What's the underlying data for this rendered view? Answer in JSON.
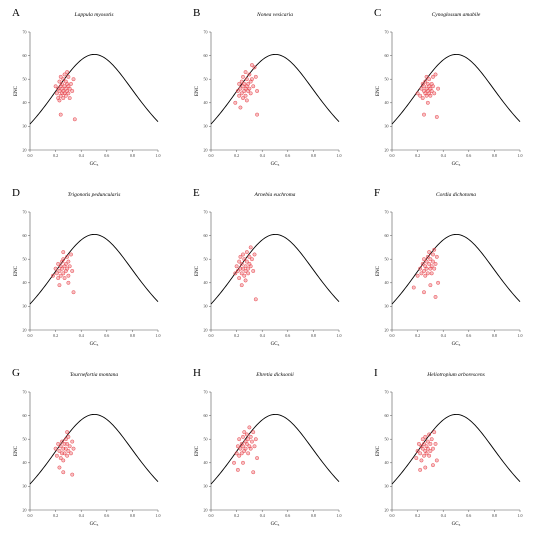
{
  "figure": {
    "point_color": "#e8484f",
    "curve_color": "#000000",
    "axis_color": "#555555"
  },
  "chart_data": [
    {
      "type": "scatter",
      "panel_letter": "A",
      "title": "Lappula myosotis",
      "xlabel": "GC₃",
      "ylabel": "ENC",
      "xlim": [
        0,
        1
      ],
      "ylim": [
        20,
        70
      ],
      "xticks": [
        "0.0",
        "0.2",
        "0.4",
        "0.6",
        "0.8",
        "1.0"
      ],
      "yticks": [
        "20",
        "30",
        "40",
        "50",
        "60",
        "70"
      ],
      "expected_curve": "ENC = 2 + GC3 + 29 / (GC3^2 + (1 - GC3)^2)",
      "points": [
        [
          0.2,
          47
        ],
        [
          0.21,
          44
        ],
        [
          0.22,
          42
        ],
        [
          0.22,
          46
        ],
        [
          0.23,
          45
        ],
        [
          0.23,
          49
        ],
        [
          0.24,
          43
        ],
        [
          0.24,
          47
        ],
        [
          0.24,
          51
        ],
        [
          0.25,
          44
        ],
        [
          0.25,
          46
        ],
        [
          0.25,
          48
        ],
        [
          0.26,
          42
        ],
        [
          0.26,
          45
        ],
        [
          0.26,
          50
        ],
        [
          0.27,
          47
        ],
        [
          0.27,
          44
        ],
        [
          0.27,
          52
        ],
        [
          0.28,
          46
        ],
        [
          0.28,
          43
        ],
        [
          0.28,
          49
        ],
        [
          0.29,
          45
        ],
        [
          0.29,
          48
        ],
        [
          0.3,
          44
        ],
        [
          0.3,
          47
        ],
        [
          0.3,
          51
        ],
        [
          0.31,
          46
        ],
        [
          0.31,
          42
        ],
        [
          0.32,
          48
        ],
        [
          0.33,
          45
        ],
        [
          0.34,
          50
        ],
        [
          0.24,
          35
        ],
        [
          0.35,
          33
        ],
        [
          0.23,
          41
        ],
        [
          0.29,
          53
        ]
      ]
    },
    {
      "type": "scatter",
      "panel_letter": "B",
      "title": "Nonea vesicaria",
      "xlabel": "GC₃",
      "ylabel": "ENC",
      "xlim": [
        0,
        1
      ],
      "ylim": [
        20,
        70
      ],
      "xticks": [
        "0.0",
        "0.2",
        "0.4",
        "0.6",
        "0.8",
        "1.0"
      ],
      "yticks": [
        "20",
        "30",
        "40",
        "50",
        "60",
        "70"
      ],
      "expected_curve": "ENC = 2 + GC3 + 29 / (GC3^2 + (1 - GC3)^2)",
      "points": [
        [
          0.19,
          40
        ],
        [
          0.21,
          45
        ],
        [
          0.22,
          43
        ],
        [
          0.22,
          48
        ],
        [
          0.23,
          46
        ],
        [
          0.24,
          44
        ],
        [
          0.24,
          49
        ],
        [
          0.25,
          47
        ],
        [
          0.25,
          42
        ],
        [
          0.25,
          51
        ],
        [
          0.26,
          45
        ],
        [
          0.26,
          48
        ],
        [
          0.27,
          46
        ],
        [
          0.27,
          43
        ],
        [
          0.27,
          53
        ],
        [
          0.28,
          47
        ],
        [
          0.28,
          50
        ],
        [
          0.29,
          45
        ],
        [
          0.29,
          48
        ],
        [
          0.3,
          52
        ],
        [
          0.3,
          46
        ],
        [
          0.31,
          49
        ],
        [
          0.31,
          44
        ],
        [
          0.32,
          50
        ],
        [
          0.33,
          47
        ],
        [
          0.34,
          55
        ],
        [
          0.35,
          51
        ],
        [
          0.36,
          45
        ],
        [
          0.23,
          38
        ],
        [
          0.36,
          35
        ],
        [
          0.28,
          41
        ],
        [
          0.32,
          56
        ]
      ]
    },
    {
      "type": "scatter",
      "panel_letter": "C",
      "title": "Cynoglossum amabile",
      "xlabel": "GC₃",
      "ylabel": "ENC",
      "xlim": [
        0,
        1
      ],
      "ylim": [
        20,
        70
      ],
      "xticks": [
        "0.0",
        "0.2",
        "0.4",
        "0.6",
        "0.8",
        "1.0"
      ],
      "yticks": [
        "20",
        "30",
        "40",
        "50",
        "60",
        "70"
      ],
      "expected_curve": "ENC = 2 + GC3 + 29 / (GC3^2 + (1 - GC3)^2)",
      "points": [
        [
          0.2,
          44
        ],
        [
          0.22,
          43
        ],
        [
          0.23,
          46
        ],
        [
          0.24,
          42
        ],
        [
          0.24,
          48
        ],
        [
          0.25,
          45
        ],
        [
          0.25,
          47
        ],
        [
          0.26,
          44
        ],
        [
          0.26,
          49
        ],
        [
          0.27,
          46
        ],
        [
          0.27,
          43
        ],
        [
          0.27,
          51
        ],
        [
          0.28,
          45
        ],
        [
          0.28,
          48
        ],
        [
          0.29,
          44
        ],
        [
          0.29,
          47
        ],
        [
          0.29,
          50
        ],
        [
          0.3,
          46
        ],
        [
          0.3,
          43
        ],
        [
          0.31,
          48
        ],
        [
          0.31,
          45
        ],
        [
          0.32,
          51
        ],
        [
          0.32,
          47
        ],
        [
          0.33,
          44
        ],
        [
          0.34,
          52
        ],
        [
          0.25,
          35
        ],
        [
          0.35,
          34
        ],
        [
          0.28,
          40
        ],
        [
          0.36,
          46
        ]
      ]
    },
    {
      "type": "scatter",
      "panel_letter": "D",
      "title": "Trigonotis peduncularis",
      "xlabel": "GC₃",
      "ylabel": "ENC",
      "xlim": [
        0,
        1
      ],
      "ylim": [
        20,
        70
      ],
      "xticks": [
        "0.0",
        "0.2",
        "0.4",
        "0.6",
        "0.8",
        "1.0"
      ],
      "yticks": [
        "20",
        "30",
        "40",
        "50",
        "60",
        "70"
      ],
      "expected_curve": "ENC = 2 + GC3 + 29 / (GC3^2 + (1 - GC3)^2)",
      "points": [
        [
          0.18,
          43
        ],
        [
          0.2,
          46
        ],
        [
          0.21,
          44
        ],
        [
          0.22,
          42
        ],
        [
          0.22,
          48
        ],
        [
          0.23,
          45
        ],
        [
          0.24,
          47
        ],
        [
          0.24,
          43
        ],
        [
          0.25,
          49
        ],
        [
          0.25,
          46
        ],
        [
          0.26,
          44
        ],
        [
          0.26,
          50
        ],
        [
          0.27,
          47
        ],
        [
          0.27,
          42
        ],
        [
          0.28,
          48
        ],
        [
          0.28,
          45
        ],
        [
          0.29,
          51
        ],
        [
          0.29,
          46
        ],
        [
          0.3,
          49
        ],
        [
          0.3,
          43
        ],
        [
          0.31,
          47
        ],
        [
          0.32,
          52
        ],
        [
          0.33,
          45
        ],
        [
          0.34,
          36
        ],
        [
          0.3,
          40
        ],
        [
          0.23,
          39
        ],
        [
          0.26,
          53
        ]
      ]
    },
    {
      "type": "scatter",
      "panel_letter": "E",
      "title": "Arnebia euchroma",
      "xlabel": "GC₃",
      "ylabel": "ENC",
      "xlim": [
        0,
        1
      ],
      "ylim": [
        20,
        70
      ],
      "xticks": [
        "0.0",
        "0.2",
        "0.4",
        "0.6",
        "0.8",
        "1.0"
      ],
      "yticks": [
        "20",
        "30",
        "40",
        "50",
        "60",
        "70"
      ],
      "expected_curve": "ENC = 2 + GC3 + 29 / (GC3^2 + (1 - GC3)^2)",
      "points": [
        [
          0.19,
          44
        ],
        [
          0.2,
          47
        ],
        [
          0.21,
          45
        ],
        [
          0.22,
          42
        ],
        [
          0.22,
          49
        ],
        [
          0.23,
          46
        ],
        [
          0.23,
          51
        ],
        [
          0.24,
          44
        ],
        [
          0.24,
          48
        ],
        [
          0.25,
          46
        ],
        [
          0.25,
          52
        ],
        [
          0.26,
          43
        ],
        [
          0.26,
          50
        ],
        [
          0.27,
          47
        ],
        [
          0.27,
          45
        ],
        [
          0.28,
          53
        ],
        [
          0.28,
          49
        ],
        [
          0.29,
          46
        ],
        [
          0.29,
          44
        ],
        [
          0.3,
          51
        ],
        [
          0.3,
          48
        ],
        [
          0.31,
          47
        ],
        [
          0.32,
          50
        ],
        [
          0.33,
          45
        ],
        [
          0.34,
          52
        ],
        [
          0.35,
          33
        ],
        [
          0.24,
          39
        ],
        [
          0.27,
          41
        ],
        [
          0.31,
          55
        ]
      ]
    },
    {
      "type": "scatter",
      "panel_letter": "F",
      "title": "Cordia dichotoma",
      "xlabel": "GC₃",
      "ylabel": "ENC",
      "xlim": [
        0,
        1
      ],
      "ylim": [
        20,
        70
      ],
      "xticks": [
        "0.0",
        "0.2",
        "0.4",
        "0.6",
        "0.8",
        "1.0"
      ],
      "yticks": [
        "20",
        "30",
        "40",
        "50",
        "60",
        "70"
      ],
      "expected_curve": "ENC = 2 + GC3 + 29 / (GC3^2 + (1 - GC3)^2)",
      "points": [
        [
          0.17,
          38
        ],
        [
          0.2,
          43
        ],
        [
          0.22,
          46
        ],
        [
          0.23,
          44
        ],
        [
          0.24,
          48
        ],
        [
          0.25,
          45
        ],
        [
          0.25,
          50
        ],
        [
          0.26,
          47
        ],
        [
          0.26,
          43
        ],
        [
          0.27,
          49
        ],
        [
          0.27,
          46
        ],
        [
          0.28,
          51
        ],
        [
          0.28,
          44
        ],
        [
          0.29,
          48
        ],
        [
          0.29,
          53
        ],
        [
          0.3,
          46
        ],
        [
          0.3,
          50
        ],
        [
          0.31,
          47
        ],
        [
          0.31,
          44
        ],
        [
          0.32,
          52
        ],
        [
          0.32,
          49
        ],
        [
          0.33,
          46
        ],
        [
          0.33,
          54
        ],
        [
          0.34,
          48
        ],
        [
          0.35,
          51
        ],
        [
          0.25,
          36
        ],
        [
          0.3,
          39
        ],
        [
          0.36,
          40
        ],
        [
          0.34,
          34
        ]
      ]
    },
    {
      "type": "scatter",
      "panel_letter": "G",
      "title": "Tournefortia montana",
      "xlabel": "GC₃",
      "ylabel": "ENC",
      "xlim": [
        0,
        1
      ],
      "ylim": [
        20,
        70
      ],
      "xticks": [
        "0.0",
        "0.2",
        "0.4",
        "0.6",
        "0.8",
        "1.0"
      ],
      "yticks": [
        "20",
        "30",
        "40",
        "50",
        "60",
        "70"
      ],
      "expected_curve": "ENC = 2 + GC3 + 29 / (GC3^2 + (1 - GC3)^2)",
      "points": [
        [
          0.2,
          46
        ],
        [
          0.21,
          43
        ],
        [
          0.22,
          48
        ],
        [
          0.23,
          45
        ],
        [
          0.24,
          42
        ],
        [
          0.24,
          47
        ],
        [
          0.25,
          44
        ],
        [
          0.25,
          49
        ],
        [
          0.26,
          46
        ],
        [
          0.26,
          41
        ],
        [
          0.27,
          48
        ],
        [
          0.27,
          44
        ],
        [
          0.28,
          50
        ],
        [
          0.28,
          46
        ],
        [
          0.29,
          43
        ],
        [
          0.29,
          48
        ],
        [
          0.3,
          45
        ],
        [
          0.3,
          51
        ],
        [
          0.31,
          47
        ],
        [
          0.32,
          44
        ],
        [
          0.33,
          49
        ],
        [
          0.34,
          46
        ],
        [
          0.23,
          38
        ],
        [
          0.26,
          36
        ],
        [
          0.33,
          35
        ],
        [
          0.29,
          53
        ]
      ]
    },
    {
      "type": "scatter",
      "panel_letter": "H",
      "title": "Ehretia dicksonii",
      "xlabel": "GC₃",
      "ylabel": "ENC",
      "xlim": [
        0,
        1
      ],
      "ylim": [
        20,
        70
      ],
      "xticks": [
        "0.0",
        "0.2",
        "0.4",
        "0.6",
        "0.8",
        "1.0"
      ],
      "yticks": [
        "20",
        "30",
        "40",
        "50",
        "60",
        "70"
      ],
      "expected_curve": "ENC = 2 + GC3 + 29 / (GC3^2 + (1 - GC3)^2)",
      "points": [
        [
          0.18,
          40
        ],
        [
          0.2,
          44
        ],
        [
          0.21,
          47
        ],
        [
          0.22,
          43
        ],
        [
          0.22,
          50
        ],
        [
          0.23,
          46
        ],
        [
          0.24,
          48
        ],
        [
          0.24,
          44
        ],
        [
          0.25,
          51
        ],
        [
          0.25,
          47
        ],
        [
          0.26,
          45
        ],
        [
          0.26,
          53
        ],
        [
          0.27,
          49
        ],
        [
          0.27,
          46
        ],
        [
          0.28,
          52
        ],
        [
          0.28,
          48
        ],
        [
          0.29,
          44
        ],
        [
          0.29,
          50
        ],
        [
          0.3,
          47
        ],
        [
          0.3,
          55
        ],
        [
          0.31,
          51
        ],
        [
          0.31,
          46
        ],
        [
          0.32,
          49
        ],
        [
          0.33,
          53
        ],
        [
          0.34,
          47
        ],
        [
          0.35,
          50
        ],
        [
          0.21,
          37
        ],
        [
          0.25,
          40
        ],
        [
          0.33,
          36
        ],
        [
          0.36,
          42
        ]
      ]
    },
    {
      "type": "scatter",
      "panel_letter": "I",
      "title": "Heliotropium arborescens",
      "xlabel": "GC₃",
      "ylabel": "ENC",
      "xlim": [
        0,
        1
      ],
      "ylim": [
        20,
        70
      ],
      "xticks": [
        "0.0",
        "0.2",
        "0.4",
        "0.6",
        "0.8",
        "1.0"
      ],
      "yticks": [
        "20",
        "30",
        "40",
        "50",
        "60",
        "70"
      ],
      "expected_curve": "ENC = 2 + GC3 + 29 / (GC3^2 + (1 - GC3)^2)",
      "points": [
        [
          0.19,
          42
        ],
        [
          0.2,
          45
        ],
        [
          0.21,
          48
        ],
        [
          0.22,
          44
        ],
        [
          0.23,
          47
        ],
        [
          0.23,
          41
        ],
        [
          0.24,
          46
        ],
        [
          0.24,
          50
        ],
        [
          0.25,
          43
        ],
        [
          0.25,
          48
        ],
        [
          0.26,
          45
        ],
        [
          0.26,
          51
        ],
        [
          0.27,
          47
        ],
        [
          0.27,
          44
        ],
        [
          0.28,
          49
        ],
        [
          0.28,
          46
        ],
        [
          0.29,
          43
        ],
        [
          0.29,
          52
        ],
        [
          0.3,
          48
        ],
        [
          0.3,
          45
        ],
        [
          0.31,
          50
        ],
        [
          0.32,
          46
        ],
        [
          0.33,
          53
        ],
        [
          0.34,
          48
        ],
        [
          0.22,
          37
        ],
        [
          0.26,
          38
        ],
        [
          0.32,
          39
        ],
        [
          0.35,
          41
        ]
      ]
    }
  ]
}
